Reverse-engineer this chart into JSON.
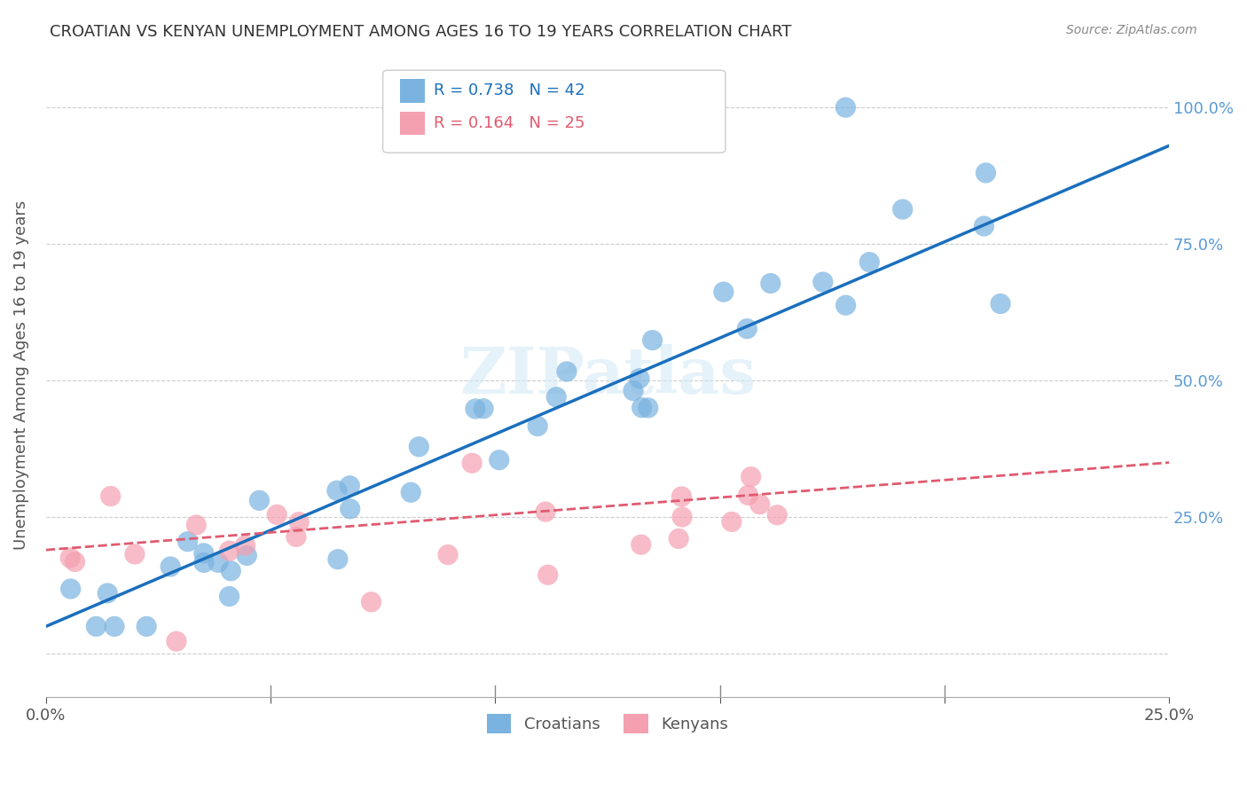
{
  "title": "CROATIAN VS KENYAN UNEMPLOYMENT AMONG AGES 16 TO 19 YEARS CORRELATION CHART",
  "source": "Source: ZipAtlas.com",
  "ylabel": "Unemployment Among Ages 16 to 19 years",
  "xlim": [
    0.0,
    0.25
  ],
  "ylim": [
    -0.08,
    1.1
  ],
  "x_tick_positions": [
    0.0,
    0.05,
    0.1,
    0.15,
    0.2,
    0.25
  ],
  "x_tick_labels": [
    "0.0%",
    "",
    "",
    "",
    "",
    "25.0%"
  ],
  "y_tick_positions": [
    0.0,
    0.25,
    0.5,
    0.75,
    1.0
  ],
  "y_tick_labels": [
    "",
    "25.0%",
    "50.0%",
    "75.0%",
    "100.0%"
  ],
  "croatian_color": "#7ab3e0",
  "kenyan_color": "#f4a0b0",
  "trendline_croatian_color": "#1a6fbd",
  "trendline_kenyan_color": "#e05a70",
  "background_color": "#ffffff",
  "watermark": "ZIPatlas",
  "legend_r_croatian": "0.738",
  "legend_n_croatian": "42",
  "legend_r_kenyan": "0.164",
  "legend_n_kenyan": "25",
  "cr_trend_y0": 0.05,
  "cr_trend_slope": 3.52,
  "ke_trend_y0": 0.19,
  "ke_trend_slope": 0.64
}
